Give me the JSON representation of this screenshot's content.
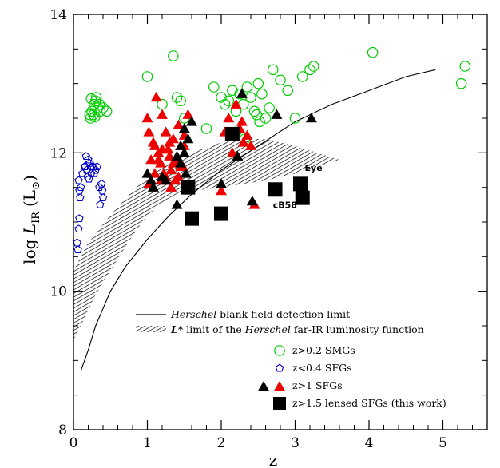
{
  "chart_data": {
    "type": "scatter",
    "xlabel": "z",
    "ylabel": "log L_IR (L_⊙)",
    "ylabel_parts": {
      "log": "log ",
      "L": "L",
      "sub": "IR",
      "unit": "(L",
      "unit_sub": "⊙",
      "unit_close": ")"
    },
    "xlim": [
      0,
      5.6
    ],
    "ylim": [
      8,
      14
    ],
    "x_ticks": [
      "0",
      "1",
      "2",
      "3",
      "4",
      "5"
    ],
    "y_ticks": [
      "8",
      "10",
      "12",
      "14"
    ],
    "grid": false,
    "legend_placement": "bottom-center",
    "legend": [
      {
        "key": "herschel_limit",
        "italic": "Herschel",
        "text": " blank field detection limit"
      },
      {
        "key": "lstar_limit",
        "prefix": "L* limit of the ",
        "italic": "Herschel",
        "text": " far-IR luminosity function"
      },
      {
        "key": "smg",
        "text": "z>0.2 SMGs"
      },
      {
        "key": "sfg_low",
        "text": "z<0.4 SFGs"
      },
      {
        "key": "sfg_high",
        "text": "z>1 SFGs"
      },
      {
        "key": "lensed",
        "text": "z>1.5 lensed SFGs (this work)"
      }
    ],
    "annotations": [
      {
        "text": "Eye",
        "x": 3.13,
        "y": 11.74
      },
      {
        "text": "cB58",
        "x": 2.7,
        "y": 11.2
      }
    ],
    "colors": {
      "smg": "#00cc00",
      "sfg_low": "#0000cc",
      "sfg_red": "#ee0000",
      "black": "#000000",
      "hatch": "#000000"
    },
    "detection_limit_curve": {
      "x": [
        0.1,
        0.2,
        0.3,
        0.5,
        0.7,
        1.0,
        1.3,
        1.6,
        2.0,
        2.5,
        3.0,
        3.5,
        4.0,
        4.5,
        4.9
      ],
      "y": [
        8.85,
        9.15,
        9.5,
        10.0,
        10.35,
        10.75,
        11.1,
        11.4,
        11.75,
        12.1,
        12.45,
        12.7,
        12.9,
        13.1,
        13.2
      ]
    },
    "lstar_band": {
      "upper": {
        "x": [
          0.0,
          0.2,
          0.5,
          0.8,
          1.0,
          1.3,
          1.6,
          2.0,
          2.3,
          2.6,
          3.0,
          3.6
        ],
        "y": [
          10.3,
          10.7,
          11.1,
          11.45,
          11.65,
          11.85,
          12.0,
          12.15,
          12.2,
          12.2,
          12.1,
          11.9
        ]
      },
      "lower": {
        "x": [
          3.6,
          3.0,
          2.6,
          2.3,
          2.0,
          1.6,
          1.3,
          1.0,
          0.8,
          0.5,
          0.3,
          0.1,
          0.0
        ],
        "y": [
          11.9,
          11.7,
          11.6,
          11.55,
          11.5,
          11.45,
          11.35,
          11.1,
          10.8,
          10.3,
          9.95,
          9.5,
          9.3
        ]
      }
    },
    "series": [
      {
        "name": "z>0.2 SMGs",
        "marker": "open-circle",
        "x": [
          0.22,
          0.25,
          0.28,
          0.3,
          0.33,
          0.36,
          0.23,
          0.27,
          0.31,
          0.35,
          0.4,
          0.45,
          0.24,
          0.29,
          1.0,
          1.35,
          1.2,
          1.4,
          1.5,
          1.45,
          1.9,
          2.0,
          2.1,
          2.15,
          2.2,
          2.25,
          2.3,
          2.35,
          2.4,
          2.45,
          2.5,
          2.55,
          2.6,
          2.65,
          2.7,
          2.8,
          3.0,
          3.1,
          3.2,
          3.25,
          2.05,
          2.2,
          2.32,
          2.48,
          1.8,
          2.52,
          2.9,
          4.05,
          5.25,
          5.3
        ],
        "y": [
          12.55,
          12.6,
          12.7,
          12.75,
          12.65,
          12.6,
          12.5,
          12.55,
          12.8,
          12.7,
          12.65,
          12.6,
          12.78,
          12.52,
          13.1,
          13.4,
          12.7,
          12.8,
          12.5,
          12.75,
          12.95,
          12.8,
          12.75,
          12.9,
          12.6,
          12.85,
          12.7,
          12.95,
          12.8,
          12.6,
          13.0,
          12.85,
          12.5,
          12.65,
          13.2,
          13.05,
          12.5,
          13.1,
          13.2,
          13.25,
          12.7,
          12.3,
          12.2,
          12.55,
          12.35,
          12.45,
          12.9,
          13.45,
          13.0,
          13.25
        ]
      },
      {
        "name": "z<0.4 SFGs",
        "marker": "open-pentagon",
        "x": [
          0.05,
          0.06,
          0.07,
          0.08,
          0.09,
          0.1,
          0.07,
          0.08,
          0.12,
          0.15,
          0.18,
          0.2,
          0.22,
          0.25,
          0.28,
          0.3,
          0.32,
          0.35,
          0.38,
          0.4,
          0.17,
          0.19,
          0.24,
          0.27,
          0.16,
          0.36,
          0.39,
          0.21
        ],
        "y": [
          10.7,
          10.6,
          10.9,
          11.05,
          11.35,
          11.5,
          11.6,
          11.45,
          11.7,
          11.8,
          11.75,
          11.9,
          11.85,
          11.8,
          11.7,
          11.75,
          11.8,
          11.5,
          11.55,
          11.35,
          11.95,
          11.65,
          11.7,
          11.8,
          11.8,
          11.25,
          11.45,
          11.62
        ]
      },
      {
        "name": "z>1 SFGs (red)",
        "marker": "filled-triangle",
        "x": [
          1.0,
          1.02,
          1.05,
          1.08,
          1.1,
          1.12,
          1.15,
          1.18,
          1.2,
          1.22,
          1.25,
          1.28,
          1.3,
          1.32,
          1.35,
          1.38,
          1.4,
          1.42,
          1.45,
          1.5,
          1.55,
          1.02,
          1.1,
          1.15,
          1.2,
          1.25,
          1.3,
          1.35,
          1.42,
          1.5,
          2.0,
          2.1,
          2.2,
          2.25,
          2.3,
          2.35,
          2.4,
          2.45,
          2.28,
          2.15,
          2.05,
          1.48,
          1.18,
          1.32
        ],
        "y": [
          12.5,
          12.3,
          11.9,
          12.15,
          12.1,
          12.8,
          12.0,
          11.85,
          12.55,
          11.7,
          12.3,
          12.05,
          11.95,
          11.75,
          12.2,
          11.6,
          11.9,
          12.4,
          11.8,
          12.1,
          12.55,
          11.55,
          11.7,
          11.9,
          12.05,
          11.65,
          12.15,
          11.85,
          11.65,
          12.25,
          11.45,
          12.5,
          12.7,
          12.35,
          12.15,
          12.25,
          12.1,
          11.25,
          12.45,
          12.0,
          12.3,
          11.8,
          11.6,
          11.5
        ]
      },
      {
        "name": "z>1 SFGs (black)",
        "marker": "filled-triangle",
        "x": [
          1.0,
          1.05,
          1.08,
          1.2,
          1.25,
          1.4,
          1.45,
          1.5,
          1.55,
          1.6,
          1.45,
          1.5,
          1.4,
          1.52,
          2.0,
          2.28,
          2.42,
          2.75,
          3.22,
          2.22
        ],
        "y": [
          11.7,
          11.6,
          11.5,
          11.65,
          11.6,
          11.25,
          12.1,
          12.0,
          12.2,
          12.45,
          11.85,
          12.35,
          11.95,
          11.7,
          11.55,
          12.85,
          11.3,
          12.55,
          12.5,
          11.95
        ]
      },
      {
        "name": "z>1.5 lensed SFGs (this work)",
        "marker": "filled-square",
        "x": [
          1.55,
          1.6,
          2.0,
          2.15,
          2.73,
          3.07,
          3.1
        ],
        "y": [
          11.5,
          11.05,
          11.12,
          12.27,
          11.47,
          11.55,
          11.35
        ]
      }
    ]
  }
}
